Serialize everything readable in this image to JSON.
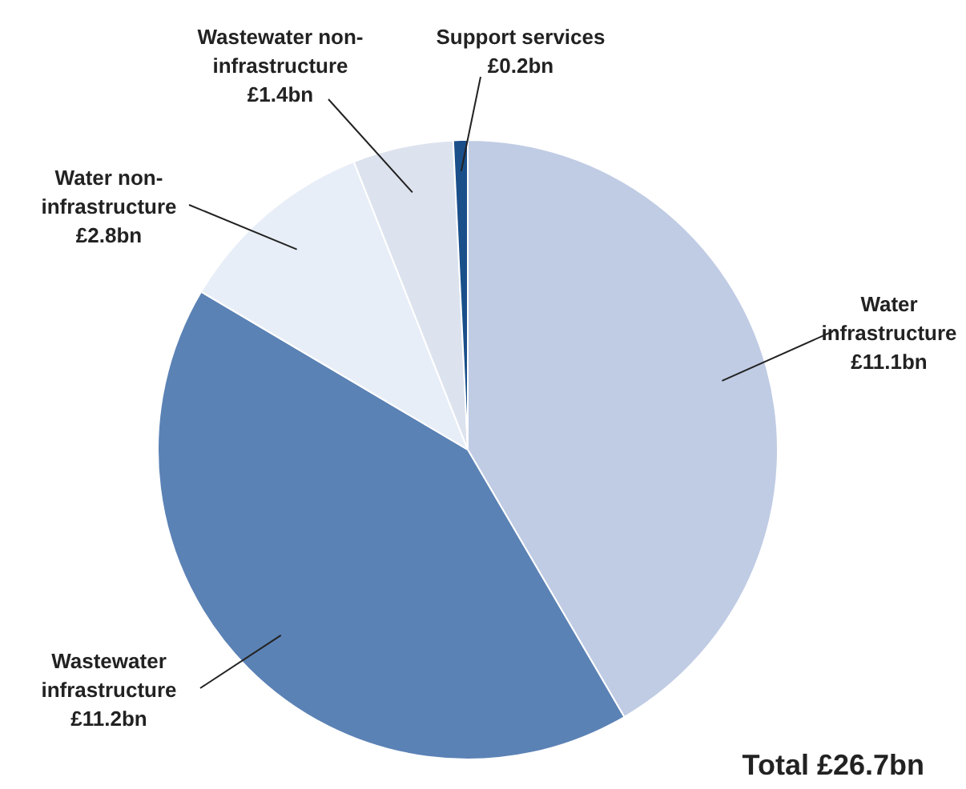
{
  "chart_data": {
    "type": "pie",
    "categories": [
      "Water infrastructure",
      "Wastewater infrastructure",
      "Water non-infrastructure",
      "Wastewater non-infrastructure",
      "Support services"
    ],
    "values": [
      11.1,
      11.2,
      2.8,
      1.4,
      0.2
    ],
    "colors": [
      "#c0cce4",
      "#5b82b5",
      "#e8eef7",
      "#dde3ee",
      "#1a4f8a"
    ],
    "value_labels": [
      "£11.1bn",
      "£11.2bn",
      "£2.8bn",
      "£1.4bn",
      "£0.2bn"
    ],
    "annotations": [
      "Total £26.7bn"
    ]
  }
}
